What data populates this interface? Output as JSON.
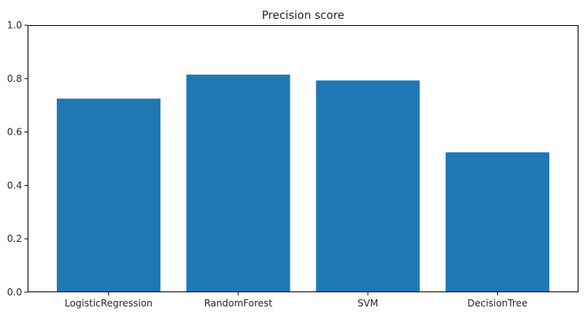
{
  "chart_data": {
    "type": "bar",
    "title": "Precision score",
    "xlabel": "",
    "ylabel": "",
    "categories": [
      "LogisticRegression",
      "RandomForest",
      "SVM",
      "DecisionTree"
    ],
    "values": [
      0.725,
      0.815,
      0.793,
      0.524
    ],
    "ylim": [
      0,
      1.0
    ],
    "yticks": [
      "0.0",
      "0.2",
      "0.4",
      "0.6",
      "0.8",
      "1.0"
    ],
    "grid": false,
    "legend": "none",
    "bar_color": "#1f77b4"
  }
}
